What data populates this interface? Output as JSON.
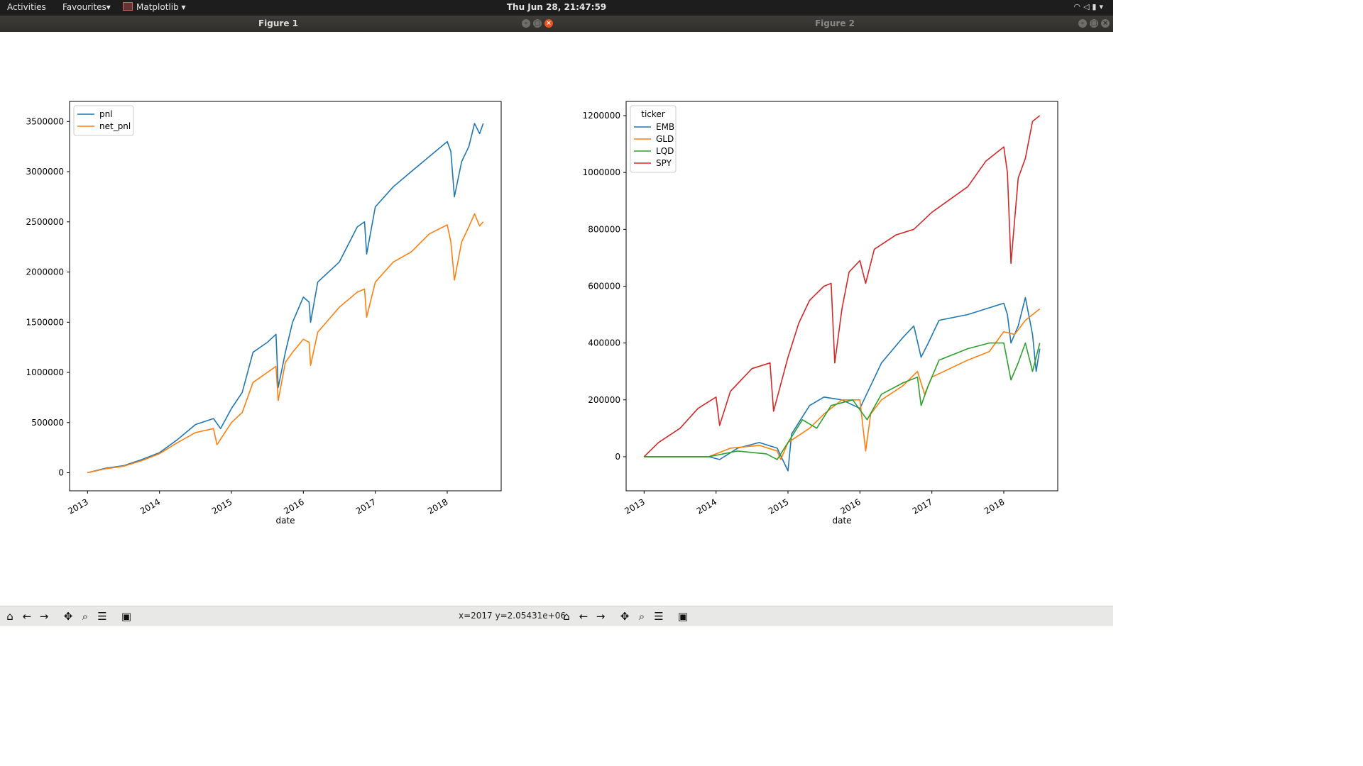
{
  "topbar": {
    "activities": "Activities",
    "favourites": "Favourites▾",
    "app_menu": "Matplotlib ▾",
    "clock": "Thu Jun 28, 21:47:59",
    "tray_icons": [
      "wifi-icon",
      "mute-icon",
      "battery-icon",
      "menu-arrow-icon"
    ]
  },
  "windows": [
    {
      "title": "Figure 1"
    },
    {
      "title": "Figure 2"
    }
  ],
  "toolbar": {
    "coords": "x=2017 y=2.05431e+06",
    "buttons": [
      "home-icon",
      "back-icon",
      "forward-icon",
      "pan-icon",
      "zoom-icon",
      "configure-subplots-icon",
      "save-icon"
    ]
  },
  "chart_data": [
    {
      "type": "line",
      "title": "",
      "xlabel": "date",
      "ylabel": "",
      "xlim": [
        2012.75,
        2018.75
      ],
      "ylim": [
        -180000,
        3700000
      ],
      "x_ticks": [
        "2013",
        "2014",
        "2015",
        "2016",
        "2017",
        "2018"
      ],
      "y_ticks": [
        "0",
        "500000",
        "1000000",
        "1500000",
        "2000000",
        "2500000",
        "3000000",
        "3500000"
      ],
      "legend": {
        "title": "",
        "position": "upper left"
      },
      "series": [
        {
          "name": "pnl",
          "color": "#1f77b4",
          "points": [
            [
              2013.0,
              0
            ],
            [
              2013.25,
              45000
            ],
            [
              2013.5,
              70000
            ],
            [
              2013.75,
              130000
            ],
            [
              2014.0,
              200000
            ],
            [
              2014.25,
              330000
            ],
            [
              2014.5,
              480000
            ],
            [
              2014.75,
              540000
            ],
            [
              2014.85,
              440000
            ],
            [
              2015.0,
              640000
            ],
            [
              2015.15,
              800000
            ],
            [
              2015.3,
              1200000
            ],
            [
              2015.5,
              1300000
            ],
            [
              2015.62,
              1380000
            ],
            [
              2015.65,
              850000
            ],
            [
              2015.75,
              1200000
            ],
            [
              2015.85,
              1500000
            ],
            [
              2016.0,
              1750000
            ],
            [
              2016.08,
              1700000
            ],
            [
              2016.1,
              1500000
            ],
            [
              2016.2,
              1900000
            ],
            [
              2016.5,
              2100000
            ],
            [
              2016.75,
              2450000
            ],
            [
              2016.85,
              2500000
            ],
            [
              2016.88,
              2180000
            ],
            [
              2017.0,
              2650000
            ],
            [
              2017.25,
              2850000
            ],
            [
              2017.5,
              3000000
            ],
            [
              2017.75,
              3150000
            ],
            [
              2018.0,
              3300000
            ],
            [
              2018.05,
              3200000
            ],
            [
              2018.1,
              2750000
            ],
            [
              2018.2,
              3100000
            ],
            [
              2018.3,
              3250000
            ],
            [
              2018.38,
              3480000
            ],
            [
              2018.45,
              3380000
            ],
            [
              2018.5,
              3480000
            ]
          ]
        },
        {
          "name": "net_pnl",
          "color": "#ff7f0e",
          "points": [
            [
              2013.0,
              0
            ],
            [
              2013.25,
              40000
            ],
            [
              2013.5,
              65000
            ],
            [
              2013.75,
              120000
            ],
            [
              2014.0,
              190000
            ],
            [
              2014.25,
              300000
            ],
            [
              2014.5,
              400000
            ],
            [
              2014.75,
              440000
            ],
            [
              2014.8,
              280000
            ],
            [
              2015.0,
              500000
            ],
            [
              2015.15,
              600000
            ],
            [
              2015.3,
              900000
            ],
            [
              2015.5,
              1000000
            ],
            [
              2015.62,
              1060000
            ],
            [
              2015.65,
              720000
            ],
            [
              2015.75,
              1100000
            ],
            [
              2015.85,
              1200000
            ],
            [
              2016.0,
              1330000
            ],
            [
              2016.08,
              1300000
            ],
            [
              2016.1,
              1070000
            ],
            [
              2016.2,
              1400000
            ],
            [
              2016.5,
              1650000
            ],
            [
              2016.75,
              1800000
            ],
            [
              2016.85,
              1830000
            ],
            [
              2016.88,
              1550000
            ],
            [
              2017.0,
              1900000
            ],
            [
              2017.25,
              2100000
            ],
            [
              2017.5,
              2200000
            ],
            [
              2017.75,
              2380000
            ],
            [
              2018.0,
              2470000
            ],
            [
              2018.05,
              2300000
            ],
            [
              2018.1,
              1920000
            ],
            [
              2018.2,
              2300000
            ],
            [
              2018.3,
              2450000
            ],
            [
              2018.38,
              2580000
            ],
            [
              2018.45,
              2460000
            ],
            [
              2018.5,
              2500000
            ]
          ]
        }
      ]
    },
    {
      "type": "line",
      "title": "",
      "xlabel": "date",
      "ylabel": "",
      "xlim": [
        2012.75,
        2018.75
      ],
      "ylim": [
        -120000,
        1250000
      ],
      "x_ticks": [
        "2013",
        "2014",
        "2015",
        "2016",
        "2017",
        "2018"
      ],
      "y_ticks": [
        "0",
        "200000",
        "400000",
        "600000",
        "800000",
        "1000000",
        "1200000"
      ],
      "legend": {
        "title": "ticker",
        "position": "upper left"
      },
      "series": [
        {
          "name": "EMB",
          "color": "#1f77b4",
          "points": [
            [
              2013.0,
              0
            ],
            [
              2013.9,
              0
            ],
            [
              2014.05,
              -10000
            ],
            [
              2014.3,
              30000
            ],
            [
              2014.6,
              50000
            ],
            [
              2014.85,
              30000
            ],
            [
              2015.0,
              -50000
            ],
            [
              2015.05,
              80000
            ],
            [
              2015.3,
              180000
            ],
            [
              2015.5,
              210000
            ],
            [
              2015.75,
              200000
            ],
            [
              2016.0,
              170000
            ],
            [
              2016.3,
              330000
            ],
            [
              2016.6,
              420000
            ],
            [
              2016.75,
              460000
            ],
            [
              2016.85,
              350000
            ],
            [
              2016.95,
              400000
            ],
            [
              2017.1,
              480000
            ],
            [
              2017.5,
              500000
            ],
            [
              2018.0,
              540000
            ],
            [
              2018.05,
              500000
            ],
            [
              2018.1,
              400000
            ],
            [
              2018.2,
              460000
            ],
            [
              2018.3,
              560000
            ],
            [
              2018.4,
              430000
            ],
            [
              2018.45,
              300000
            ],
            [
              2018.5,
              380000
            ]
          ]
        },
        {
          "name": "GLD",
          "color": "#ff7f0e",
          "points": [
            [
              2013.0,
              0
            ],
            [
              2013.9,
              0
            ],
            [
              2014.2,
              30000
            ],
            [
              2014.6,
              40000
            ],
            [
              2014.85,
              20000
            ],
            [
              2014.9,
              -10000
            ],
            [
              2015.0,
              50000
            ],
            [
              2015.3,
              100000
            ],
            [
              2015.5,
              150000
            ],
            [
              2015.75,
              200000
            ],
            [
              2016.0,
              200000
            ],
            [
              2016.08,
              20000
            ],
            [
              2016.15,
              150000
            ],
            [
              2016.3,
              200000
            ],
            [
              2016.6,
              250000
            ],
            [
              2016.8,
              300000
            ],
            [
              2016.9,
              220000
            ],
            [
              2017.0,
              280000
            ],
            [
              2017.5,
              340000
            ],
            [
              2017.8,
              370000
            ],
            [
              2018.0,
              440000
            ],
            [
              2018.15,
              430000
            ],
            [
              2018.3,
              480000
            ],
            [
              2018.5,
              520000
            ]
          ]
        },
        {
          "name": "LQD",
          "color": "#2ca02c",
          "points": [
            [
              2013.0,
              0
            ],
            [
              2013.9,
              0
            ],
            [
              2014.3,
              20000
            ],
            [
              2014.7,
              10000
            ],
            [
              2014.85,
              -10000
            ],
            [
              2015.0,
              50000
            ],
            [
              2015.2,
              130000
            ],
            [
              2015.4,
              100000
            ],
            [
              2015.6,
              180000
            ],
            [
              2015.9,
              200000
            ],
            [
              2016.1,
              130000
            ],
            [
              2016.3,
              220000
            ],
            [
              2016.6,
              260000
            ],
            [
              2016.8,
              280000
            ],
            [
              2016.85,
              180000
            ],
            [
              2016.95,
              250000
            ],
            [
              2017.1,
              340000
            ],
            [
              2017.5,
              380000
            ],
            [
              2017.8,
              400000
            ],
            [
              2018.0,
              400000
            ],
            [
              2018.1,
              270000
            ],
            [
              2018.2,
              330000
            ],
            [
              2018.3,
              400000
            ],
            [
              2018.4,
              300000
            ],
            [
              2018.5,
              400000
            ]
          ]
        },
        {
          "name": "SPY",
          "color": "#d62728",
          "points": [
            [
              2013.0,
              0
            ],
            [
              2013.2,
              50000
            ],
            [
              2013.5,
              100000
            ],
            [
              2013.75,
              170000
            ],
            [
              2014.0,
              210000
            ],
            [
              2014.05,
              110000
            ],
            [
              2014.2,
              230000
            ],
            [
              2014.5,
              310000
            ],
            [
              2014.75,
              330000
            ],
            [
              2014.8,
              160000
            ],
            [
              2015.0,
              350000
            ],
            [
              2015.15,
              470000
            ],
            [
              2015.3,
              550000
            ],
            [
              2015.5,
              600000
            ],
            [
              2015.6,
              610000
            ],
            [
              2015.65,
              330000
            ],
            [
              2015.75,
              520000
            ],
            [
              2015.85,
              650000
            ],
            [
              2016.0,
              690000
            ],
            [
              2016.08,
              610000
            ],
            [
              2016.2,
              730000
            ],
            [
              2016.5,
              780000
            ],
            [
              2016.75,
              800000
            ],
            [
              2017.0,
              860000
            ],
            [
              2017.5,
              950000
            ],
            [
              2017.75,
              1040000
            ],
            [
              2018.0,
              1090000
            ],
            [
              2018.05,
              1000000
            ],
            [
              2018.1,
              680000
            ],
            [
              2018.2,
              980000
            ],
            [
              2018.3,
              1050000
            ],
            [
              2018.4,
              1180000
            ],
            [
              2018.5,
              1200000
            ]
          ]
        }
      ]
    }
  ]
}
